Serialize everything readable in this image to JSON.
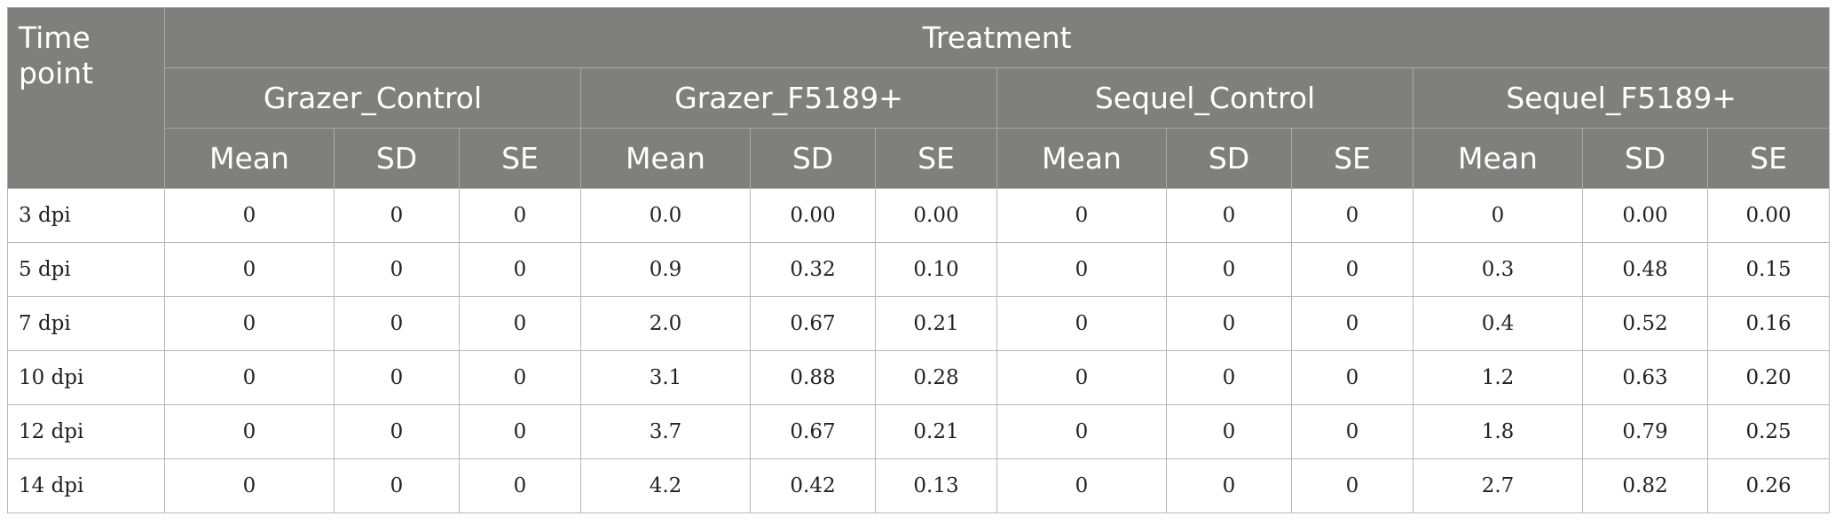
{
  "header": {
    "time_point": "Time point",
    "treatment": "Treatment",
    "groups": [
      "Grazer_Control",
      "Grazer_F5189+",
      "Sequel_Control",
      "Sequel_F5189+"
    ],
    "stats": [
      "Mean",
      "SD",
      "SE"
    ]
  },
  "rows": [
    {
      "time": "3 dpi",
      "values": [
        "0",
        "0",
        "0",
        "0.0",
        "0.00",
        "0.00",
        "0",
        "0",
        "0",
        "0",
        "0.00",
        "0.00"
      ]
    },
    {
      "time": "5 dpi",
      "values": [
        "0",
        "0",
        "0",
        "0.9",
        "0.32",
        "0.10",
        "0",
        "0",
        "0",
        "0.3",
        "0.48",
        "0.15"
      ]
    },
    {
      "time": "7 dpi",
      "values": [
        "0",
        "0",
        "0",
        "2.0",
        "0.67",
        "0.21",
        "0",
        "0",
        "0",
        "0.4",
        "0.52",
        "0.16"
      ]
    },
    {
      "time": "10 dpi",
      "values": [
        "0",
        "0",
        "0",
        "3.1",
        "0.88",
        "0.28",
        "0",
        "0",
        "0",
        "1.2",
        "0.63",
        "0.20"
      ]
    },
    {
      "time": "12 dpi",
      "values": [
        "0",
        "0",
        "0",
        "3.7",
        "0.67",
        "0.21",
        "0",
        "0",
        "0",
        "1.8",
        "0.79",
        "0.25"
      ]
    },
    {
      "time": "14 dpi",
      "values": [
        "0",
        "0",
        "0",
        "4.2",
        "0.42",
        "0.13",
        "0",
        "0",
        "0",
        "2.7",
        "0.82",
        "0.26"
      ]
    }
  ]
}
